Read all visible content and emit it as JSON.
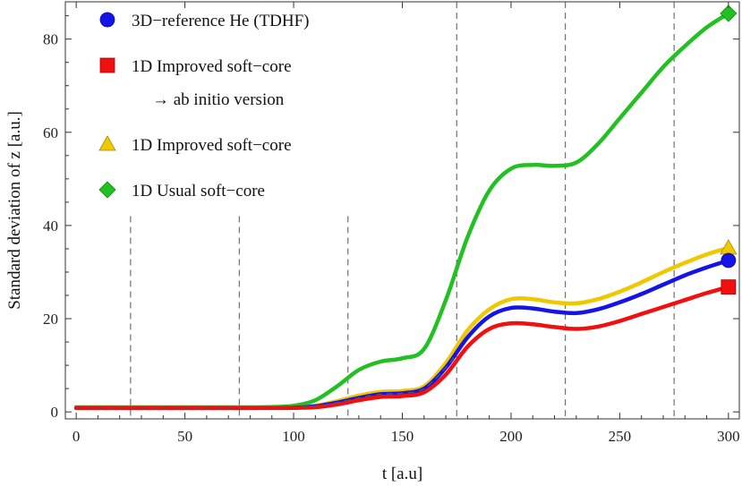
{
  "chart_data": {
    "type": "line",
    "xlabel": "t  [a.u]",
    "ylabel": "Standard  deviation  of  z  [a.u.]",
    "xlim": [
      -5,
      305
    ],
    "ylim": [
      -1.5,
      88
    ],
    "x_ticks": [
      0,
      50,
      100,
      150,
      200,
      250,
      300
    ],
    "y_ticks": [
      0,
      20,
      40,
      60,
      80
    ],
    "x_tick_labels": [
      "0",
      "50",
      "100",
      "150",
      "200",
      "250",
      "300"
    ],
    "y_tick_labels": [
      "0",
      "20",
      "40",
      "60",
      "80"
    ],
    "vertical_dashed_lines": [
      25,
      75,
      125,
      175,
      225,
      275
    ],
    "legend_position": "top-left",
    "grid": false,
    "series": [
      {
        "name": "1D Usual soft−core",
        "color": "#22c022",
        "marker": "diamond",
        "x": [
          0,
          25,
          50,
          75,
          90,
          100,
          110,
          120,
          130,
          140,
          150,
          160,
          170,
          180,
          190,
          200,
          210,
          220,
          230,
          240,
          250,
          260,
          270,
          280,
          290,
          300
        ],
        "y": [
          1.0,
          1.0,
          1.0,
          1.0,
          1.05,
          1.3,
          2.5,
          5.5,
          9.0,
          10.8,
          11.5,
          13.5,
          24.0,
          37.5,
          47.5,
          52.2,
          53.0,
          52.8,
          53.5,
          57.5,
          63.0,
          68.5,
          74.0,
          78.5,
          82.5,
          85.5
        ]
      },
      {
        "name": "1D Improved soft−core",
        "color": "#f0c800",
        "marker": "triangle",
        "x": [
          0,
          25,
          50,
          75,
          90,
          100,
          110,
          120,
          130,
          140,
          150,
          160,
          170,
          180,
          190,
          200,
          210,
          220,
          230,
          240,
          250,
          260,
          270,
          280,
          290,
          300
        ],
        "y": [
          0.9,
          0.9,
          0.9,
          0.9,
          0.92,
          0.95,
          1.3,
          2.3,
          3.5,
          4.3,
          4.5,
          5.5,
          10.5,
          17.5,
          22.0,
          24.2,
          24.2,
          23.5,
          23.3,
          24.2,
          25.8,
          27.8,
          30.0,
          32.0,
          33.8,
          35.2
        ]
      },
      {
        "name": "3D−reference He (TDHF)",
        "color": "#1414e6",
        "marker": "circle",
        "x": [
          0,
          25,
          50,
          75,
          90,
          100,
          110,
          120,
          130,
          140,
          150,
          160,
          170,
          180,
          190,
          200,
          210,
          220,
          230,
          240,
          250,
          260,
          270,
          280,
          290,
          300
        ],
        "y": [
          0.85,
          0.85,
          0.85,
          0.85,
          0.88,
          0.92,
          1.2,
          2.0,
          3.0,
          3.8,
          4.0,
          5.0,
          9.5,
          16.0,
          20.5,
          22.3,
          22.2,
          21.5,
          21.2,
          22.0,
          23.5,
          25.3,
          27.3,
          29.3,
          31.0,
          32.5
        ]
      },
      {
        "name": "1D Improved soft−core → ab initio version",
        "color": "#f01010",
        "marker": "square",
        "x": [
          0,
          25,
          50,
          75,
          90,
          100,
          110,
          120,
          130,
          140,
          150,
          160,
          170,
          180,
          190,
          200,
          210,
          220,
          230,
          240,
          250,
          260,
          270,
          280,
          290,
          300
        ],
        "y": [
          0.8,
          0.8,
          0.8,
          0.8,
          0.82,
          0.85,
          1.0,
          1.6,
          2.5,
          3.2,
          3.4,
          4.2,
          8.0,
          14.0,
          17.8,
          19.0,
          18.8,
          18.2,
          17.8,
          18.3,
          19.5,
          21.0,
          22.5,
          24.0,
          25.5,
          26.8
        ]
      }
    ],
    "reference_dashed_curve": {
      "color": "#555555",
      "x": [
        0,
        25,
        50,
        75,
        90,
        100,
        110,
        120,
        130,
        140,
        150,
        160,
        170,
        175
      ],
      "y": [
        0.85,
        0.85,
        0.85,
        0.85,
        0.88,
        0.92,
        1.2,
        2.0,
        3.0,
        3.8,
        4.0,
        5.0,
        9.5,
        12.5
      ]
    },
    "legend": [
      {
        "label": "3D−reference He (TDHF)",
        "color": "#1414e6",
        "marker": "circle"
      },
      {
        "label": "1D Improved soft−core",
        "sub_label": "→ ab initio version",
        "color": "#f01010",
        "marker": "square"
      },
      {
        "label": "1D Improved soft−core",
        "color": "#f0c800",
        "marker": "triangle"
      },
      {
        "label": "1D Usual soft−core",
        "color": "#22c022",
        "marker": "diamond"
      }
    ]
  }
}
